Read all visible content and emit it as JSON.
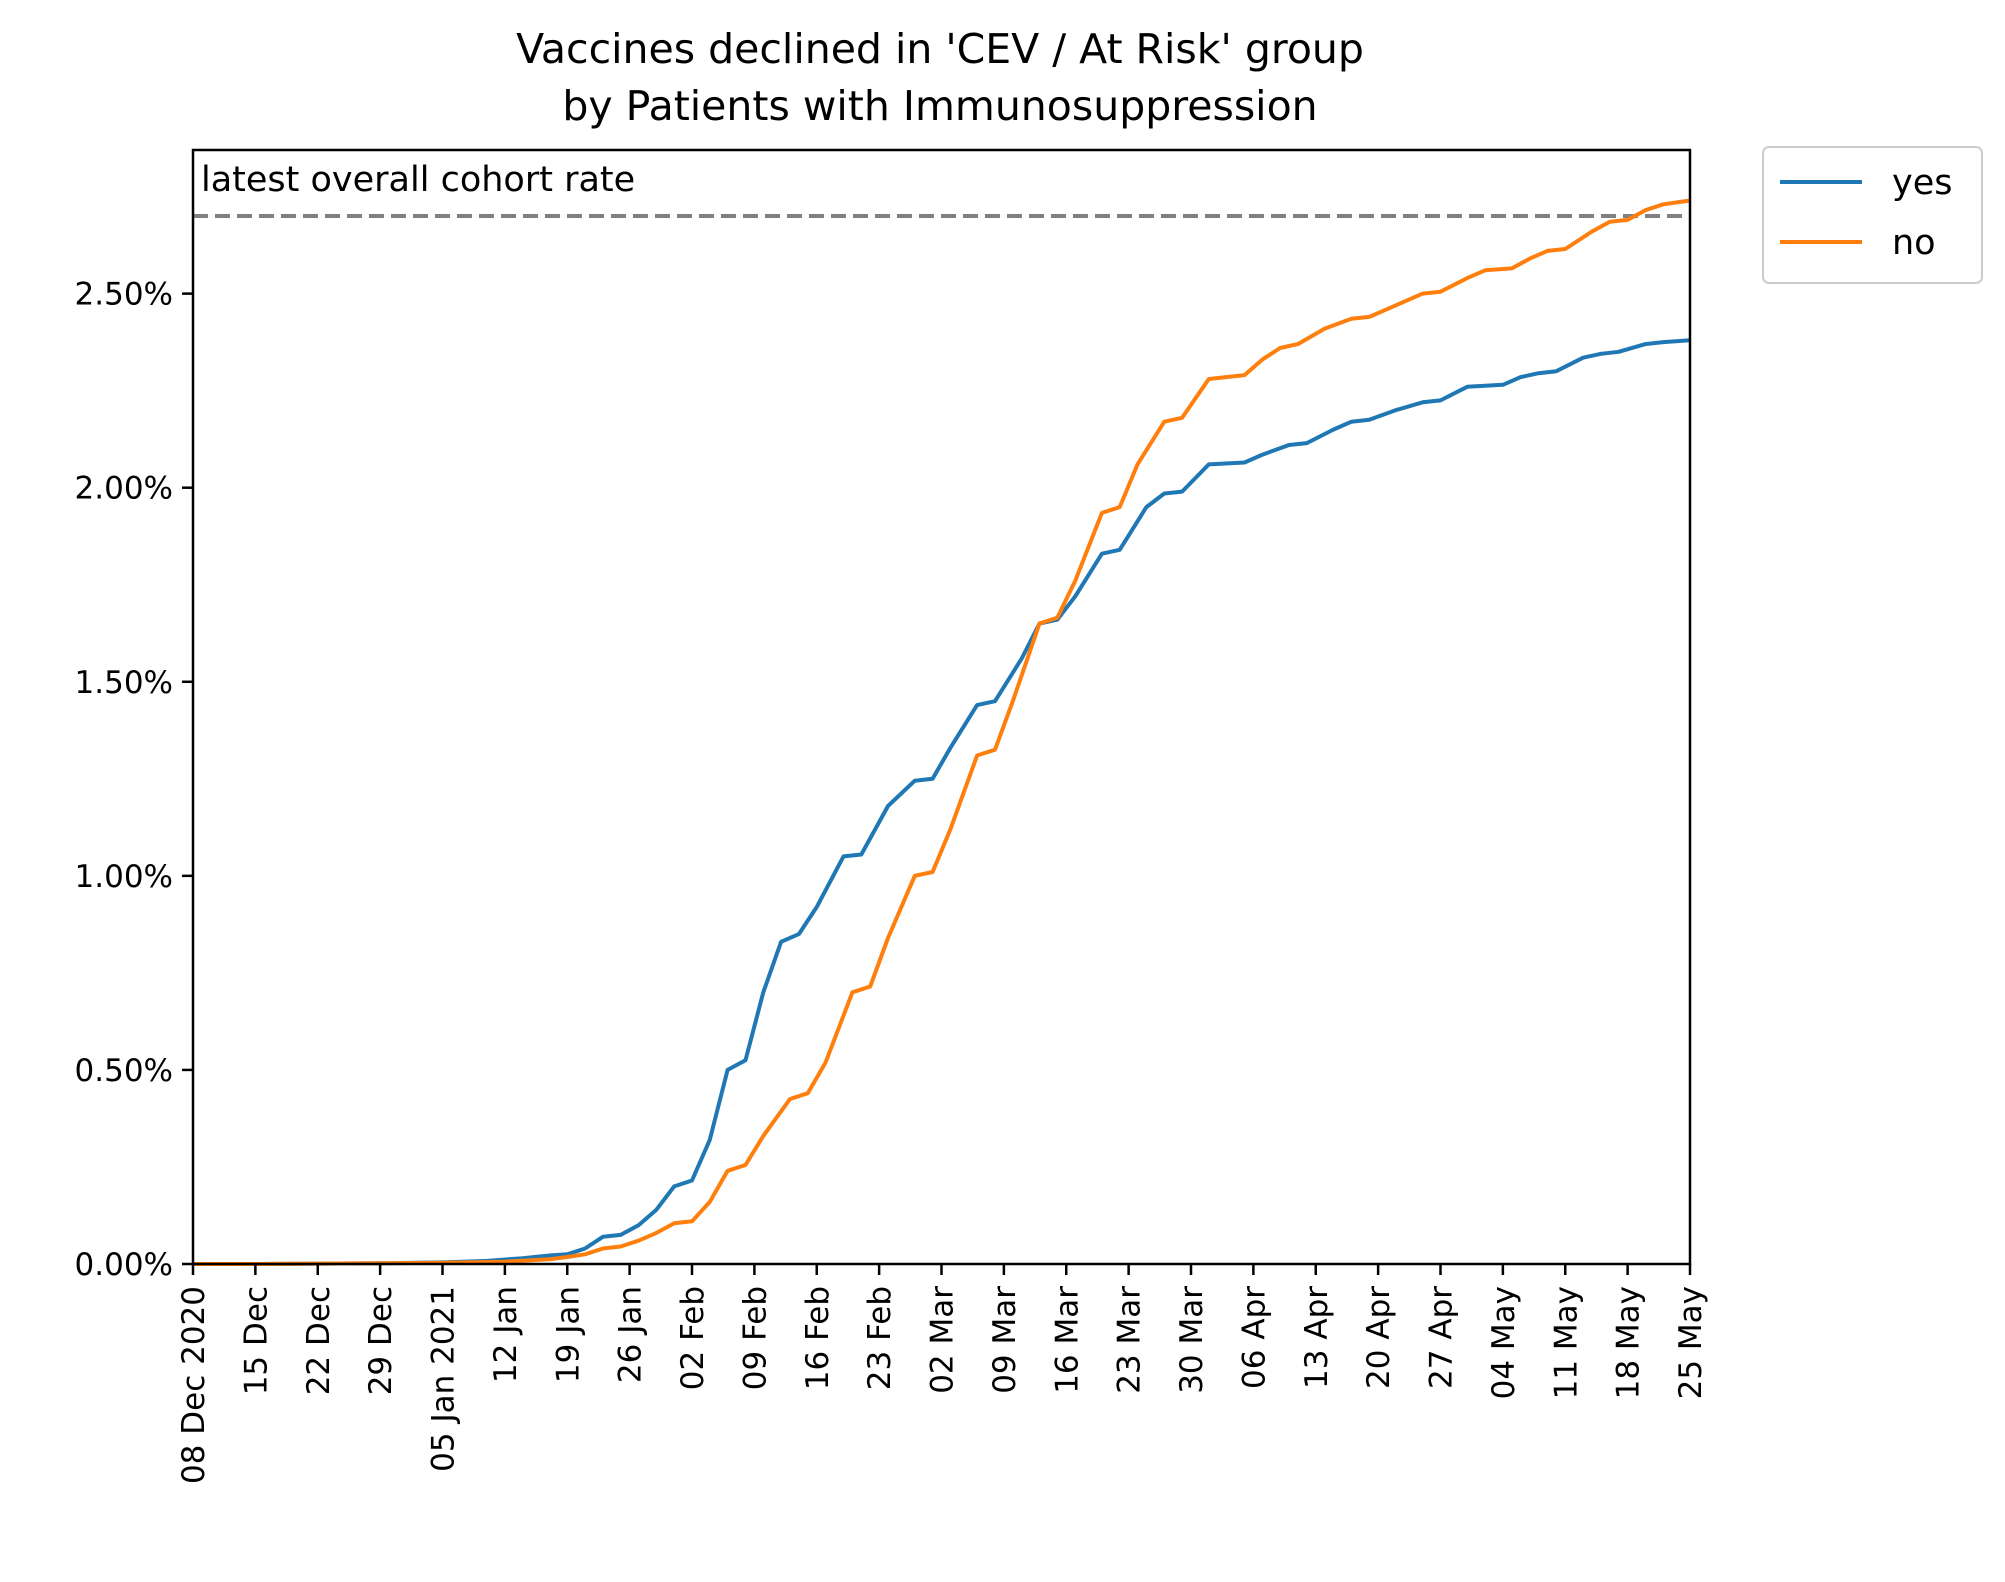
{
  "chart_data": {
    "type": "line",
    "title_line1": "Vaccines declined in 'CEV / At Risk' group",
    "title_line2": "by Patients with Immunosuppression",
    "xlabel": "",
    "ylabel": "",
    "y_ticks": [
      "0.00%",
      "0.50%",
      "1.00%",
      "1.50%",
      "2.00%",
      "2.50%"
    ],
    "y_tick_values": [
      0,
      0.5,
      1.0,
      1.5,
      2.0,
      2.5
    ],
    "ylim": [
      0,
      2.87
    ],
    "x_range": [
      "2020-12-08",
      "2021-05-25"
    ],
    "x_ticks": [
      {
        "date": "2020-12-08",
        "label": "08 Dec 2020"
      },
      {
        "date": "2020-12-15",
        "label": "15 Dec"
      },
      {
        "date": "2020-12-22",
        "label": "22 Dec"
      },
      {
        "date": "2020-12-29",
        "label": "29 Dec"
      },
      {
        "date": "2021-01-05",
        "label": "05 Jan 2021"
      },
      {
        "date": "2021-01-12",
        "label": "12 Jan"
      },
      {
        "date": "2021-01-19",
        "label": "19 Jan"
      },
      {
        "date": "2021-01-26",
        "label": "26 Jan"
      },
      {
        "date": "2021-02-02",
        "label": "02 Feb"
      },
      {
        "date": "2021-02-09",
        "label": "09 Feb"
      },
      {
        "date": "2021-02-16",
        "label": "16 Feb"
      },
      {
        "date": "2021-02-23",
        "label": "23 Feb"
      },
      {
        "date": "2021-03-02",
        "label": "02 Mar"
      },
      {
        "date": "2021-03-09",
        "label": "09 Mar"
      },
      {
        "date": "2021-03-16",
        "label": "16 Mar"
      },
      {
        "date": "2021-03-23",
        "label": "23 Mar"
      },
      {
        "date": "2021-03-30",
        "label": "30 Mar"
      },
      {
        "date": "2021-04-06",
        "label": "06 Apr"
      },
      {
        "date": "2021-04-13",
        "label": "13 Apr"
      },
      {
        "date": "2021-04-20",
        "label": "20 Apr"
      },
      {
        "date": "2021-04-27",
        "label": "27 Apr"
      },
      {
        "date": "2021-05-04",
        "label": "04 May"
      },
      {
        "date": "2021-05-11",
        "label": "11 May"
      },
      {
        "date": "2021-05-18",
        "label": "18 May"
      },
      {
        "date": "2021-05-25",
        "label": "25 May"
      }
    ],
    "reference_line": {
      "label": "latest overall cohort rate",
      "value": 2.7,
      "style": "dashed",
      "color": "#808080"
    },
    "legend": {
      "placement": "outside-top-right"
    },
    "grid": false,
    "series": [
      {
        "name": "yes",
        "color": "#1f77b4",
        "points": [
          [
            "2020-12-08",
            0.0
          ],
          [
            "2020-12-15",
            0.0
          ],
          [
            "2020-12-22",
            0.001
          ],
          [
            "2020-12-29",
            0.002
          ],
          [
            "2021-01-05",
            0.004
          ],
          [
            "2021-01-10",
            0.008
          ],
          [
            "2021-01-14",
            0.015
          ],
          [
            "2021-01-17",
            0.022
          ],
          [
            "2021-01-19",
            0.025
          ],
          [
            "2021-01-21",
            0.04
          ],
          [
            "2021-01-23",
            0.07
          ],
          [
            "2021-01-25",
            0.075
          ],
          [
            "2021-01-27",
            0.1
          ],
          [
            "2021-01-29",
            0.14
          ],
          [
            "2021-01-31",
            0.2
          ],
          [
            "2021-02-02",
            0.215
          ],
          [
            "2021-02-04",
            0.32
          ],
          [
            "2021-02-06",
            0.5
          ],
          [
            "2021-02-08",
            0.525
          ],
          [
            "2021-02-10",
            0.7
          ],
          [
            "2021-02-12",
            0.83
          ],
          [
            "2021-02-14",
            0.85
          ],
          [
            "2021-02-16",
            0.92
          ],
          [
            "2021-02-19",
            1.05
          ],
          [
            "2021-02-21",
            1.055
          ],
          [
            "2021-02-24",
            1.18
          ],
          [
            "2021-02-27",
            1.245
          ],
          [
            "2021-03-01",
            1.25
          ],
          [
            "2021-03-03",
            1.33
          ],
          [
            "2021-03-06",
            1.44
          ],
          [
            "2021-03-08",
            1.45
          ],
          [
            "2021-03-11",
            1.56
          ],
          [
            "2021-03-13",
            1.65
          ],
          [
            "2021-03-15",
            1.66
          ],
          [
            "2021-03-17",
            1.72
          ],
          [
            "2021-03-20",
            1.83
          ],
          [
            "2021-03-22",
            1.84
          ],
          [
            "2021-03-25",
            1.95
          ],
          [
            "2021-03-27",
            1.985
          ],
          [
            "2021-03-29",
            1.99
          ],
          [
            "2021-04-01",
            2.06
          ],
          [
            "2021-04-05",
            2.065
          ],
          [
            "2021-04-07",
            2.085
          ],
          [
            "2021-04-10",
            2.11
          ],
          [
            "2021-04-12",
            2.115
          ],
          [
            "2021-04-15",
            2.15
          ],
          [
            "2021-04-17",
            2.17
          ],
          [
            "2021-04-19",
            2.175
          ],
          [
            "2021-04-22",
            2.2
          ],
          [
            "2021-04-25",
            2.22
          ],
          [
            "2021-04-27",
            2.225
          ],
          [
            "2021-04-30",
            2.26
          ],
          [
            "2021-05-04",
            2.265
          ],
          [
            "2021-05-06",
            2.285
          ],
          [
            "2021-05-08",
            2.295
          ],
          [
            "2021-05-10",
            2.3
          ],
          [
            "2021-05-13",
            2.335
          ],
          [
            "2021-05-15",
            2.345
          ],
          [
            "2021-05-17",
            2.35
          ],
          [
            "2021-05-20",
            2.37
          ],
          [
            "2021-05-22",
            2.375
          ],
          [
            "2021-05-25",
            2.38
          ]
        ]
      },
      {
        "name": "no",
        "color": "#ff7f0e",
        "points": [
          [
            "2020-12-08",
            0.0
          ],
          [
            "2020-12-15",
            0.0
          ],
          [
            "2020-12-22",
            0.001
          ],
          [
            "2020-12-29",
            0.002
          ],
          [
            "2021-01-05",
            0.003
          ],
          [
            "2021-01-12",
            0.006
          ],
          [
            "2021-01-17",
            0.012
          ],
          [
            "2021-01-19",
            0.018
          ],
          [
            "2021-01-21",
            0.025
          ],
          [
            "2021-01-23",
            0.04
          ],
          [
            "2021-01-25",
            0.045
          ],
          [
            "2021-01-27",
            0.06
          ],
          [
            "2021-01-29",
            0.08
          ],
          [
            "2021-01-31",
            0.105
          ],
          [
            "2021-02-02",
            0.11
          ],
          [
            "2021-02-04",
            0.16
          ],
          [
            "2021-02-06",
            0.24
          ],
          [
            "2021-02-08",
            0.255
          ],
          [
            "2021-02-10",
            0.33
          ],
          [
            "2021-02-13",
            0.425
          ],
          [
            "2021-02-15",
            0.44
          ],
          [
            "2021-02-17",
            0.52
          ],
          [
            "2021-02-20",
            0.7
          ],
          [
            "2021-02-22",
            0.715
          ],
          [
            "2021-02-24",
            0.84
          ],
          [
            "2021-02-27",
            1.0
          ],
          [
            "2021-03-01",
            1.01
          ],
          [
            "2021-03-03",
            1.12
          ],
          [
            "2021-03-06",
            1.31
          ],
          [
            "2021-03-08",
            1.325
          ],
          [
            "2021-03-10",
            1.45
          ],
          [
            "2021-03-13",
            1.65
          ],
          [
            "2021-03-15",
            1.665
          ],
          [
            "2021-03-17",
            1.76
          ],
          [
            "2021-03-20",
            1.935
          ],
          [
            "2021-03-22",
            1.95
          ],
          [
            "2021-03-24",
            2.06
          ],
          [
            "2021-03-27",
            2.17
          ],
          [
            "2021-03-29",
            2.18
          ],
          [
            "2021-04-01",
            2.28
          ],
          [
            "2021-04-05",
            2.29
          ],
          [
            "2021-04-07",
            2.33
          ],
          [
            "2021-04-09",
            2.36
          ],
          [
            "2021-04-11",
            2.37
          ],
          [
            "2021-04-14",
            2.41
          ],
          [
            "2021-04-17",
            2.435
          ],
          [
            "2021-04-19",
            2.44
          ],
          [
            "2021-04-22",
            2.47
          ],
          [
            "2021-04-25",
            2.5
          ],
          [
            "2021-04-27",
            2.505
          ],
          [
            "2021-04-30",
            2.54
          ],
          [
            "2021-05-02",
            2.56
          ],
          [
            "2021-05-05",
            2.565
          ],
          [
            "2021-05-07",
            2.59
          ],
          [
            "2021-05-09",
            2.61
          ],
          [
            "2021-05-11",
            2.615
          ],
          [
            "2021-05-14",
            2.66
          ],
          [
            "2021-05-16",
            2.685
          ],
          [
            "2021-05-18",
            2.69
          ],
          [
            "2021-05-20",
            2.715
          ],
          [
            "2021-05-22",
            2.73
          ],
          [
            "2021-05-25",
            2.74
          ]
        ]
      }
    ]
  }
}
